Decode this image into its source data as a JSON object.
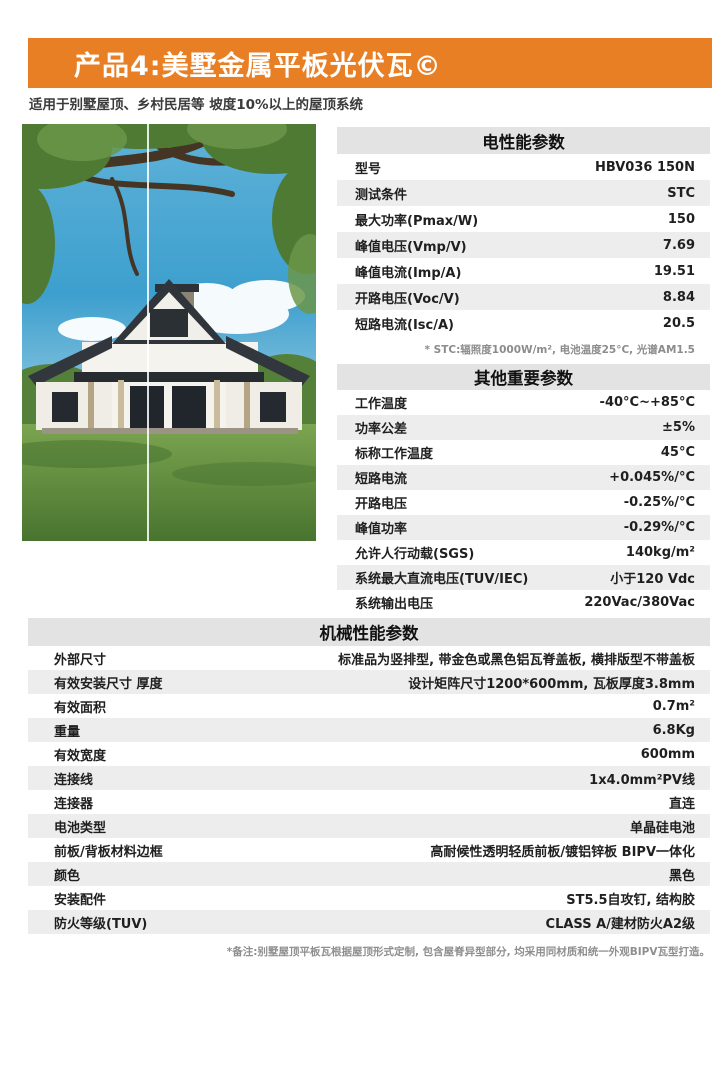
{
  "page": {
    "title": "产品4:美墅金属平板光伏瓦©",
    "subtitle": "适用于别墅屋顶、乡村民居等 坡度10%以上的屋顶系统",
    "footnote": "*备注:别墅屋顶平板瓦根据屋顶形式定制, 包含屋脊异型部分, 均采用同材质和统一外观BIPV瓦型打造。"
  },
  "colors": {
    "accent_orange": "#e87f24",
    "table_header_gray": "#e3e3e4",
    "row_alt_gray": "#ededee"
  },
  "photo": {
    "description": "现代美式农舍别墅:深色金属屋顶、白色外墙、大树与绿色草坪"
  },
  "tables": {
    "electrical": {
      "title": "电性能参数",
      "rows": [
        [
          "型号",
          "HBV036 150N"
        ],
        [
          "测试条件",
          "STC"
        ],
        [
          "最大功率(Pmax/W)",
          "150"
        ],
        [
          "峰值电压(Vmp/V)",
          "7.69"
        ],
        [
          "峰值电流(Imp/A)",
          "19.51"
        ],
        [
          "开路电压(Voc/V)",
          "8.84"
        ],
        [
          "短路电流(Isc/A)",
          "20.5"
        ]
      ],
      "note": "* STC:辐照度1000W/m², 电池温度25°C, 光谱AM1.5"
    },
    "other": {
      "title": "其他重要参数",
      "rows": [
        [
          "工作温度",
          "-40°C~+85°C"
        ],
        [
          "功率公差",
          "±5%"
        ],
        [
          "标称工作温度",
          "45°C"
        ],
        [
          "短路电流",
          "+0.045%/°C"
        ],
        [
          "开路电压",
          "-0.25%/°C"
        ],
        [
          "峰值功率",
          "-0.29%/°C"
        ],
        [
          "允许人行动载(SGS)",
          "140kg/m²"
        ],
        [
          "系统最大直流电压(TUV/IEC)",
          "小于120 Vdc"
        ],
        [
          "系统输出电压",
          "220Vac/380Vac"
        ]
      ]
    },
    "mechanical": {
      "title": "机械性能参数",
      "rows": [
        [
          "外部尺寸",
          "标准品为竖排型, 带金色或黑色铝瓦脊盖板, 横排版型不带盖板"
        ],
        [
          "有效安装尺寸 厚度",
          "设计矩阵尺寸1200*600mm, 瓦板厚度3.8mm"
        ],
        [
          "有效面积",
          "0.7m²"
        ],
        [
          "重量",
          "6.8Kg"
        ],
        [
          "有效宽度",
          "600mm"
        ],
        [
          "连接线",
          "1x4.0mm²PV线"
        ],
        [
          "连接器",
          "直连"
        ],
        [
          "电池类型",
          "单晶硅电池"
        ],
        [
          "前板/背板材料边框",
          "高耐候性透明轻质前板/镀铝锌板 BIPV一体化"
        ],
        [
          "颜色",
          "黑色"
        ],
        [
          "安装配件",
          "ST5.5自攻钉, 结构胶"
        ],
        [
          "防火等级(TUV)",
          "CLASS A/建材防火A2级"
        ]
      ]
    }
  }
}
